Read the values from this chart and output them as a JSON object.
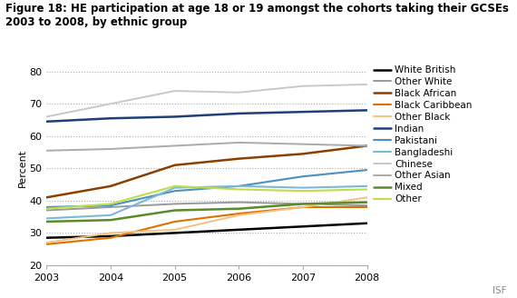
{
  "title_line1": "Figure 18: HE participation at age 18 or 19 amongst the cohorts taking their GCSEs",
  "title_line2": "2003 to 2008, by ethnic group",
  "ylabel": "Percent",
  "years": [
    2003,
    2004,
    2005,
    2006,
    2007,
    2008
  ],
  "ylim": [
    20,
    80
  ],
  "yticks": [
    20,
    30,
    40,
    50,
    60,
    70,
    80
  ],
  "series": [
    {
      "label": "White British",
      "color": "#000000",
      "linewidth": 1.8,
      "values": [
        28.5,
        29.0,
        30.0,
        31.0,
        32.0,
        33.0
      ]
    },
    {
      "label": "Other White",
      "color": "#999999",
      "linewidth": 1.4,
      "values": [
        37.0,
        38.0,
        39.0,
        39.5,
        39.0,
        38.5
      ]
    },
    {
      "label": "Black African",
      "color": "#8B4000",
      "linewidth": 1.8,
      "values": [
        41.0,
        44.5,
        51.0,
        53.0,
        54.5,
        57.0
      ]
    },
    {
      "label": "Black Caribbean",
      "color": "#E07000",
      "linewidth": 1.5,
      "values": [
        26.5,
        28.5,
        33.5,
        36.0,
        38.0,
        38.0
      ]
    },
    {
      "label": "Other Black",
      "color": "#F5C080",
      "linewidth": 1.4,
      "values": [
        27.0,
        30.0,
        31.0,
        35.5,
        38.0,
        41.0
      ]
    },
    {
      "label": "Indian",
      "color": "#1F3F7A",
      "linewidth": 1.8,
      "values": [
        64.5,
        65.5,
        66.0,
        67.0,
        67.5,
        68.0
      ]
    },
    {
      "label": "Pakistani",
      "color": "#4A90C4",
      "linewidth": 1.5,
      "values": [
        38.0,
        38.5,
        43.0,
        44.5,
        47.5,
        49.5
      ]
    },
    {
      "label": "Bangladeshi",
      "color": "#7BB8D8",
      "linewidth": 1.5,
      "values": [
        34.5,
        35.5,
        44.0,
        44.5,
        44.0,
        44.5
      ]
    },
    {
      "label": "Chinese",
      "color": "#C8C8C8",
      "linewidth": 1.4,
      "values": [
        66.0,
        70.0,
        74.0,
        73.5,
        75.5,
        76.0
      ]
    },
    {
      "label": "Other Asian",
      "color": "#AAAAAA",
      "linewidth": 1.4,
      "values": [
        55.5,
        56.0,
        57.0,
        58.0,
        57.5,
        57.0
      ]
    },
    {
      "label": "Mixed",
      "color": "#5A8A2A",
      "linewidth": 1.8,
      "values": [
        33.5,
        34.0,
        37.0,
        37.5,
        39.0,
        39.5
      ]
    },
    {
      "label": "Other",
      "color": "#BEDE4A",
      "linewidth": 1.5,
      "values": [
        37.5,
        39.0,
        44.5,
        43.5,
        43.0,
        43.5
      ]
    }
  ],
  "watermark": "ISF",
  "background_color": "#ffffff",
  "title_fontsize": 8.5,
  "axis_fontsize": 8,
  "legend_fontsize": 7.5,
  "ylabel_fontsize": 8
}
